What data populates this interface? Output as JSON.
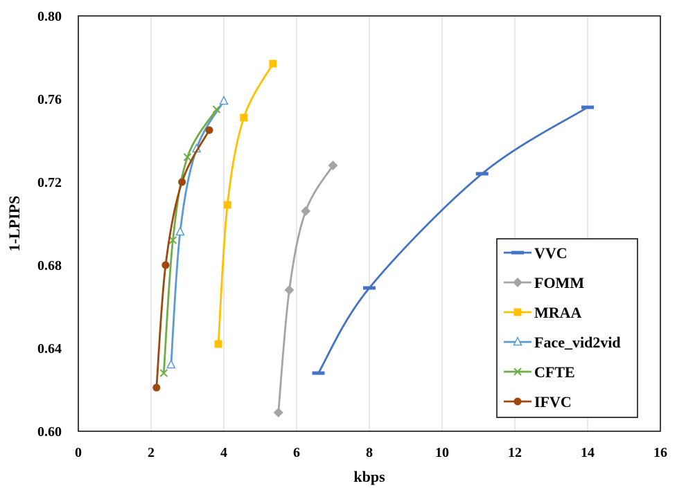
{
  "chart_data": {
    "type": "line",
    "title": "",
    "xlabel": "kbps",
    "ylabel": "1-LPIPS",
    "xlim": [
      0,
      16
    ],
    "ylim": [
      0.6,
      0.8
    ],
    "x_ticks": [
      "0",
      "2",
      "4",
      "6",
      "8",
      "10",
      "12",
      "14",
      "16"
    ],
    "y_ticks": [
      "0.60",
      "0.64",
      "0.68",
      "0.72",
      "0.76",
      "0.80"
    ],
    "grid": "vertical",
    "legend_position": "bottom-right",
    "series": [
      {
        "name": "VVC",
        "color": "#4472c4",
        "marker": "dash",
        "points": [
          [
            6.6,
            0.628
          ],
          [
            8.0,
            0.669
          ],
          [
            11.1,
            0.724
          ],
          [
            14.0,
            0.756
          ]
        ]
      },
      {
        "name": "FOMM",
        "color": "#a5a5a5",
        "marker": "diamond",
        "points": [
          [
            5.5,
            0.609
          ],
          [
            5.8,
            0.668
          ],
          [
            6.25,
            0.706
          ],
          [
            7.0,
            0.728
          ]
        ]
      },
      {
        "name": "MRAA",
        "color": "#ffc000",
        "marker": "square",
        "points": [
          [
            3.85,
            0.642
          ],
          [
            4.1,
            0.709
          ],
          [
            4.55,
            0.751
          ],
          [
            5.35,
            0.777
          ]
        ]
      },
      {
        "name": "Face_vid2vid",
        "color": "#5b9bd5",
        "marker": "triangle",
        "points": [
          [
            2.55,
            0.632
          ],
          [
            2.8,
            0.696
          ],
          [
            3.25,
            0.736
          ],
          [
            4.0,
            0.759
          ]
        ]
      },
      {
        "name": "CFTE",
        "color": "#70ad47",
        "marker": "x",
        "points": [
          [
            2.35,
            0.628
          ],
          [
            2.6,
            0.692
          ],
          [
            3.0,
            0.732
          ],
          [
            3.8,
            0.755
          ]
        ]
      },
      {
        "name": "IFVC",
        "color": "#9e480e",
        "marker": "circle",
        "points": [
          [
            2.15,
            0.621
          ],
          [
            2.4,
            0.68
          ],
          [
            2.85,
            0.72
          ],
          [
            3.6,
            0.745
          ]
        ]
      }
    ]
  }
}
